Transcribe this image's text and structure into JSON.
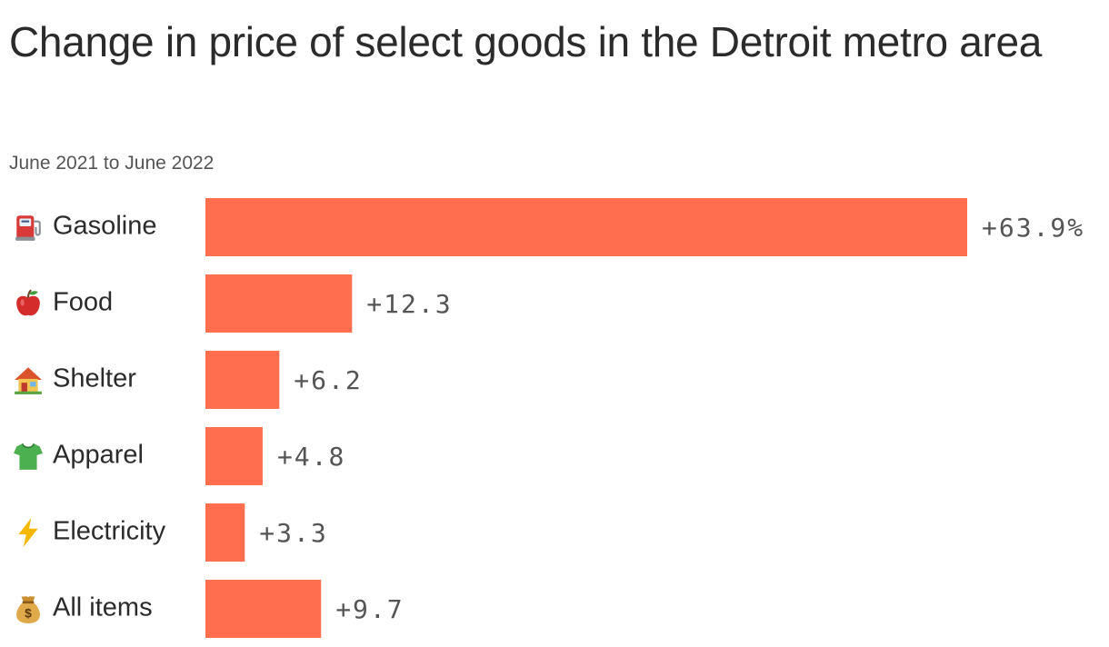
{
  "chart_data": {
    "type": "bar",
    "orientation": "horizontal",
    "title": "Change in price of select goods in the Detroit metro area",
    "subtitle": "June 2021 to June 2022",
    "xlabel": "",
    "ylabel": "",
    "categories": [
      "Gasoline",
      "Food",
      "Shelter",
      "Apparel",
      "Electricity",
      "All items"
    ],
    "category_icons": [
      "fuel-pump-icon",
      "apple-icon",
      "house-icon",
      "tshirt-icon",
      "lightning-icon",
      "money-bag-icon"
    ],
    "values": [
      63.9,
      12.3,
      6.2,
      4.8,
      3.3,
      9.7
    ],
    "value_labels": [
      "+63.9%",
      "+12.3",
      "+6.2",
      "+4.8",
      "+3.3",
      "+9.7"
    ],
    "xlim": [
      0,
      63.9
    ],
    "grid": false,
    "legend": "none",
    "bar_color": "#ff6f4f"
  }
}
